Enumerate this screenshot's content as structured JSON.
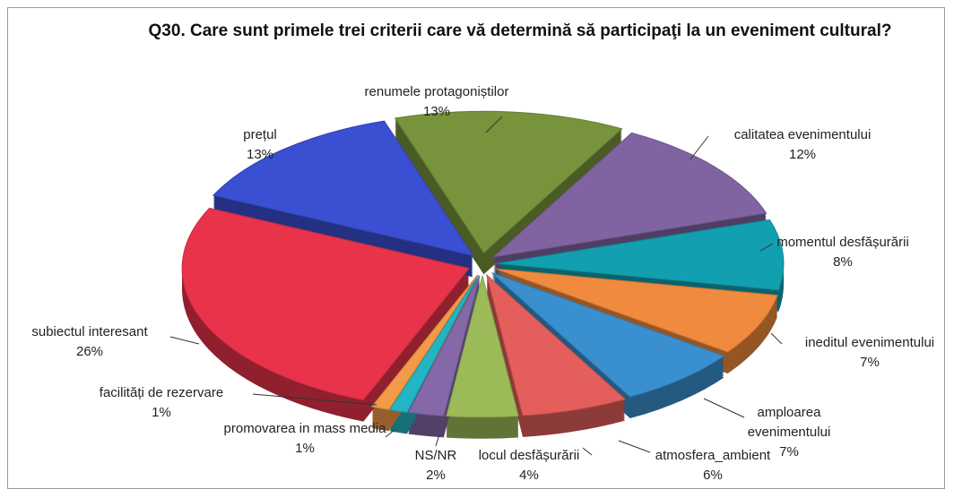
{
  "chart_data": {
    "type": "pie",
    "title": "Q30. Care sunt primele trei criterii care vă determină să participaţi la un eveniment cultural?",
    "categories": [
      "renumele protagoniștilor",
      "calitatea evenimentului",
      "momentul desfășurării",
      "ineditul evenimentului",
      "amploarea evenimentului",
      "atmosfera_ambient",
      "locul desfășurării",
      "NS/NR",
      "promovarea in mass media",
      "facilități de rezervare",
      "subiectul interesant",
      "prețul"
    ],
    "values": [
      13,
      12,
      8,
      7,
      7,
      6,
      4,
      2,
      1,
      1,
      26,
      13
    ],
    "value_labels": [
      "13%",
      "12%",
      "8%",
      "7%",
      "7%",
      "6%",
      "4%",
      "2%",
      "1%",
      "1%",
      "26%",
      "13%"
    ],
    "colors": [
      "#77933c",
      "#8064a2",
      "#129fb0",
      "#f08a3e",
      "#3a8fcf",
      "#e45f5b",
      "#9bbb59",
      "#8468a8",
      "#22b5c6",
      "#f39a48",
      "#e8334a",
      "#3a4fd1"
    ]
  }
}
